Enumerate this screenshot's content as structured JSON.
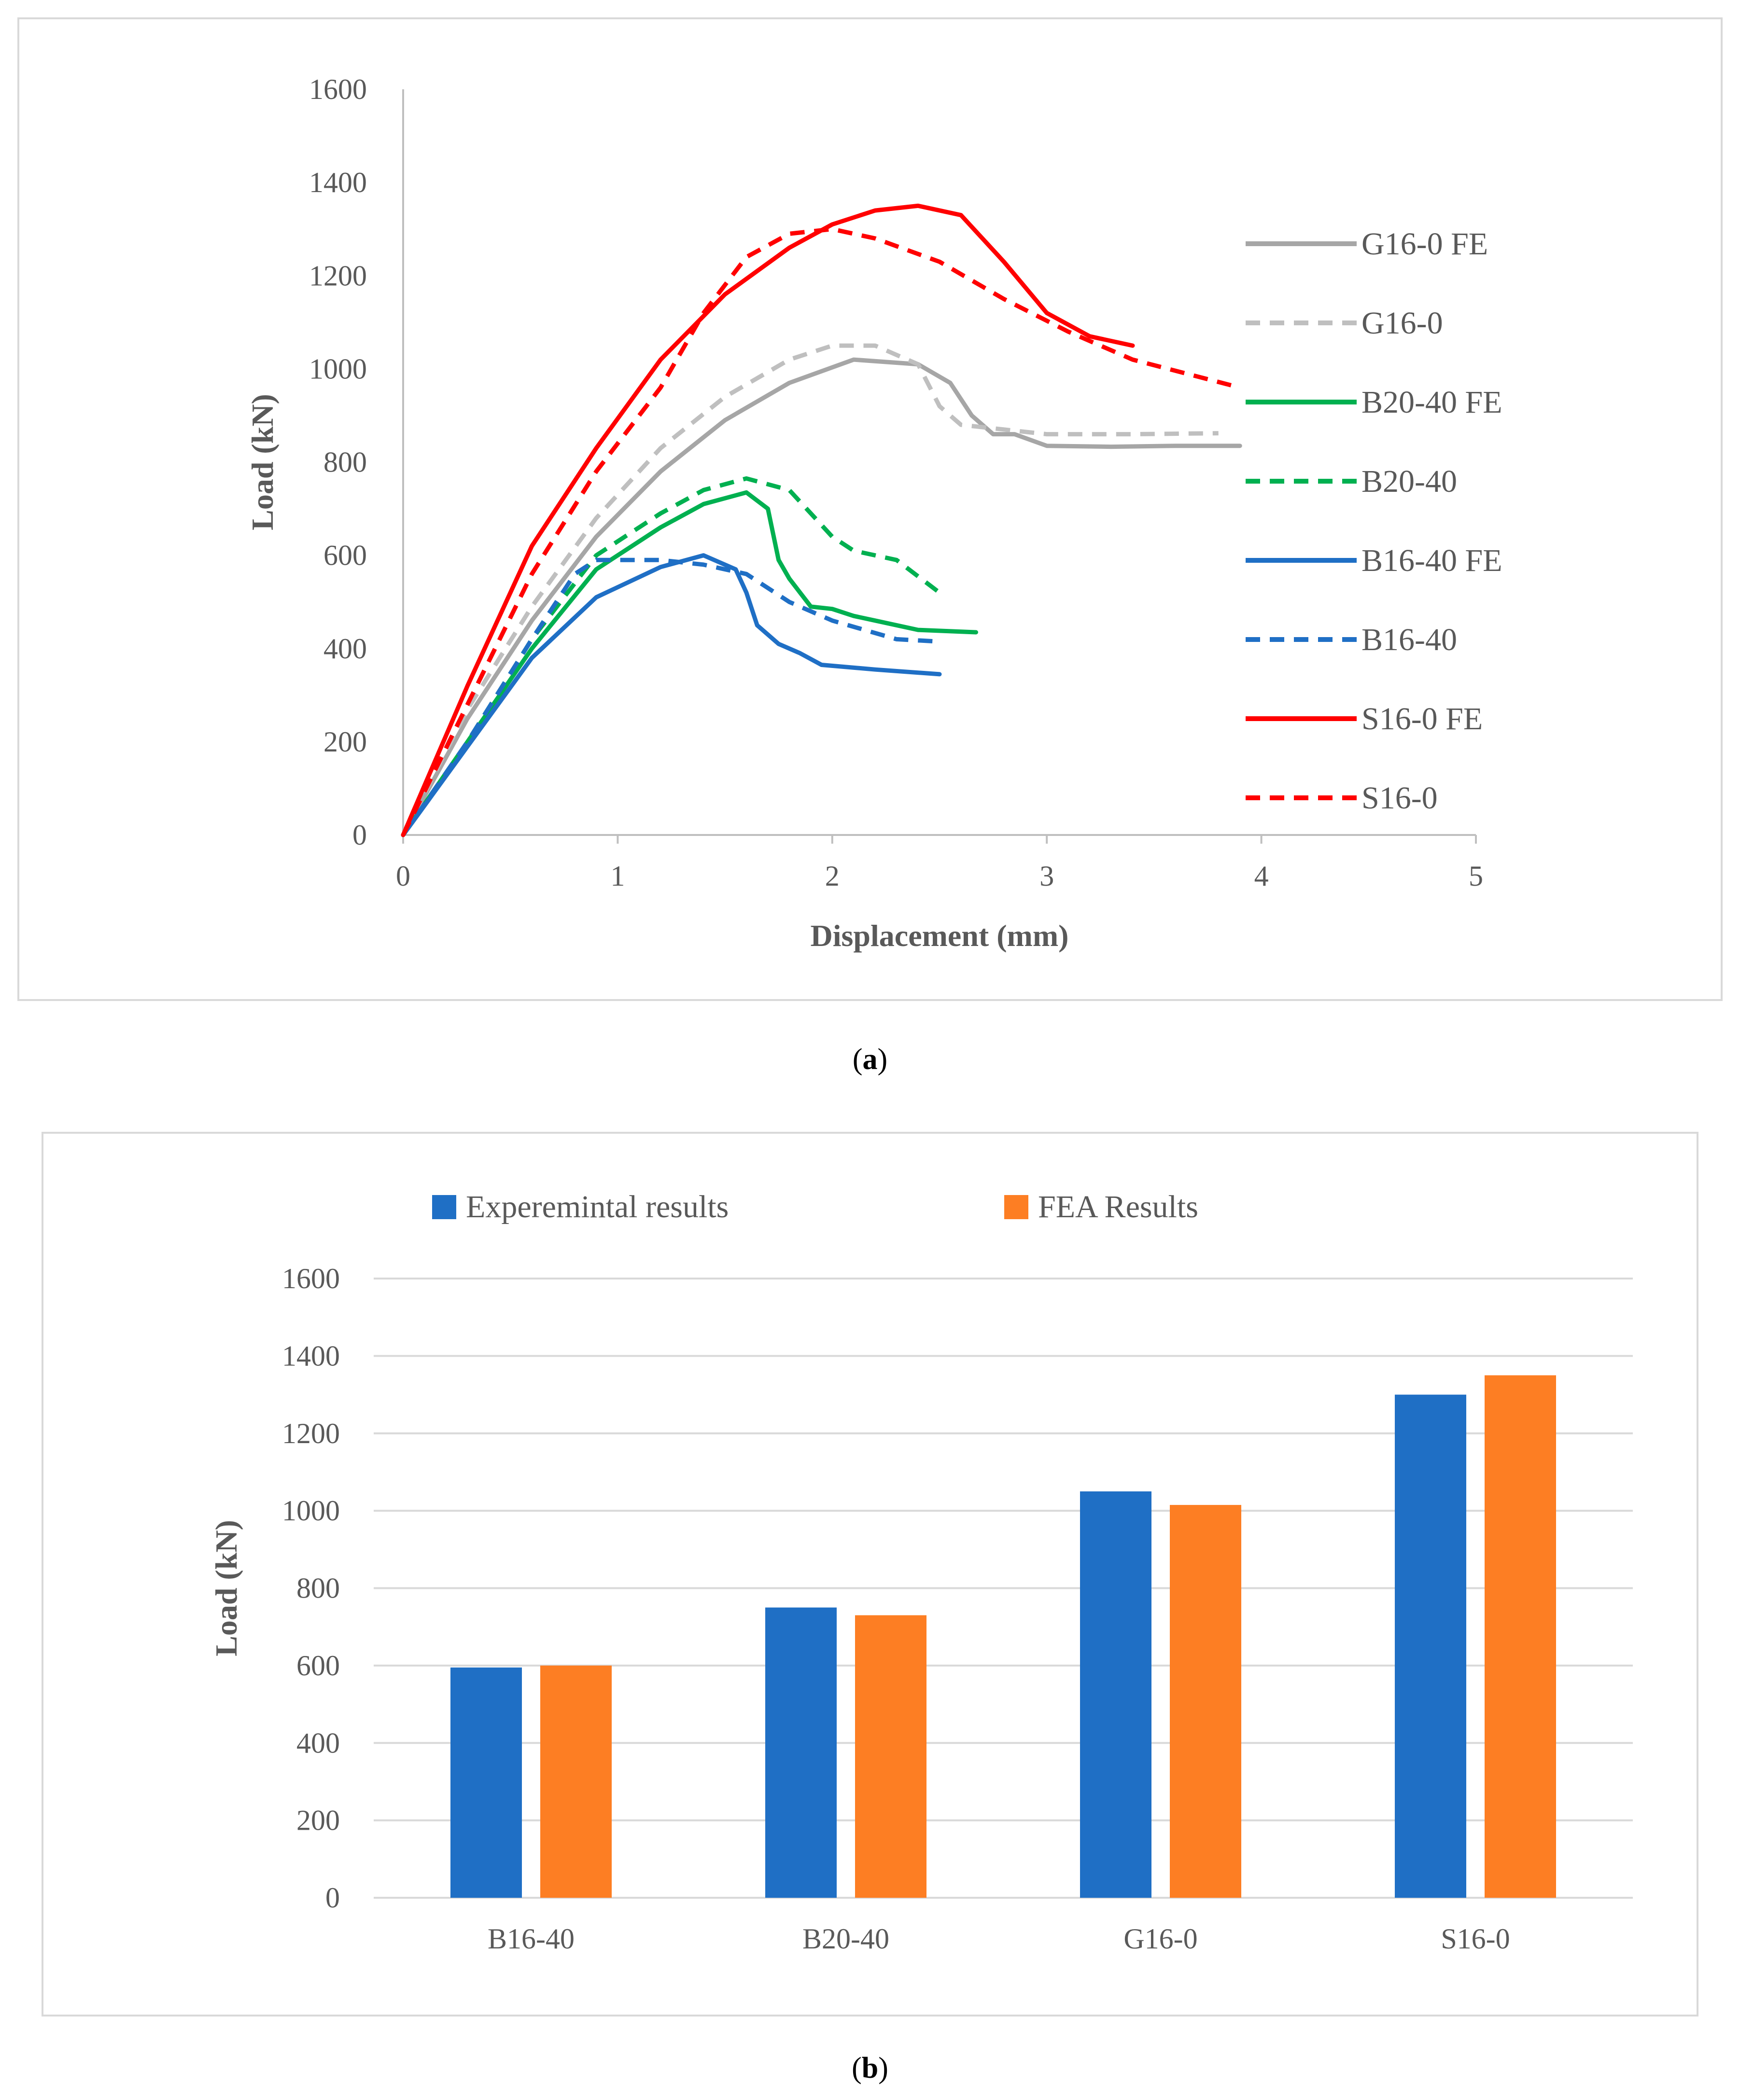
{
  "chart_data": [
    {
      "type": "line",
      "panel_label": "a",
      "xlabel": "Displacement (mm)",
      "ylabel": "Load (kN)",
      "xlim": [
        0,
        5
      ],
      "ylim": [
        0,
        1600
      ],
      "xticks": [
        "0",
        "1",
        "2",
        "3",
        "4",
        "5"
      ],
      "yticks": [
        "0",
        "200",
        "400",
        "600",
        "800",
        "1000",
        "1200",
        "1400",
        "1600"
      ],
      "grid": false,
      "legend_position": "right",
      "series": [
        {
          "name": "G16-0 FE",
          "color": "#a6a6a6",
          "dash": "solid",
          "x": [
            0,
            0.3,
            0.6,
            0.9,
            1.2,
            1.5,
            1.8,
            2.1,
            2.4,
            2.55,
            2.65,
            2.75,
            2.85,
            3.0,
            3.3,
            3.6,
            3.9
          ],
          "y": [
            0,
            250,
            460,
            640,
            780,
            890,
            970,
            1020,
            1010,
            970,
            900,
            860,
            860,
            835,
            833,
            835,
            835
          ]
        },
        {
          "name": "G16-0",
          "color": "#bfbfbf",
          "dash": "dashed",
          "x": [
            0,
            0.3,
            0.6,
            0.9,
            1.2,
            1.5,
            1.8,
            2.0,
            2.2,
            2.4,
            2.5,
            2.6,
            2.8,
            3.0,
            3.4,
            3.8
          ],
          "y": [
            0,
            270,
            490,
            680,
            830,
            940,
            1020,
            1050,
            1050,
            1010,
            920,
            880,
            870,
            860,
            860,
            862
          ]
        },
        {
          "name": "B20-40 FE",
          "color": "#00b050",
          "dash": "solid",
          "x": [
            0,
            0.3,
            0.6,
            0.9,
            1.2,
            1.4,
            1.6,
            1.7,
            1.75,
            1.8,
            1.9,
            2.0,
            2.1,
            2.2,
            2.4,
            2.67
          ],
          "y": [
            0,
            200,
            400,
            570,
            660,
            710,
            735,
            700,
            590,
            550,
            490,
            485,
            470,
            460,
            440,
            435
          ]
        },
        {
          "name": "B20-40",
          "color": "#00b050",
          "dash": "dashed",
          "x": [
            0,
            0.3,
            0.6,
            0.9,
            1.2,
            1.4,
            1.6,
            1.8,
            1.9,
            2.0,
            2.1,
            2.3,
            2.5
          ],
          "y": [
            0,
            200,
            420,
            600,
            690,
            740,
            765,
            740,
            690,
            640,
            610,
            590,
            520
          ]
        },
        {
          "name": "B16-40 FE",
          "color": "#1f6fc5",
          "dash": "solid",
          "x": [
            0,
            0.3,
            0.6,
            0.9,
            1.2,
            1.4,
            1.55,
            1.6,
            1.65,
            1.75,
            1.85,
            1.95,
            2.2,
            2.5
          ],
          "y": [
            0,
            190,
            380,
            510,
            575,
            600,
            570,
            520,
            450,
            410,
            390,
            365,
            355,
            345
          ]
        },
        {
          "name": "B16-40",
          "color": "#1f6fc5",
          "dash": "dashed",
          "x": [
            0,
            0.3,
            0.6,
            0.8,
            0.9,
            1.2,
            1.4,
            1.6,
            1.8,
            2.0,
            2.3,
            2.5
          ],
          "y": [
            0,
            200,
            420,
            560,
            590,
            590,
            580,
            560,
            500,
            460,
            420,
            415
          ]
        },
        {
          "name": "S16-0 FE",
          "color": "#ff0000",
          "dash": "solid",
          "x": [
            0,
            0.3,
            0.6,
            0.9,
            1.2,
            1.5,
            1.8,
            2.0,
            2.2,
            2.4,
            2.6,
            2.8,
            3.0,
            3.2,
            3.4
          ],
          "y": [
            0,
            320,
            620,
            830,
            1020,
            1160,
            1260,
            1310,
            1340,
            1350,
            1330,
            1230,
            1120,
            1070,
            1050
          ]
        },
        {
          "name": "S16-0",
          "color": "#ff0000",
          "dash": "dashed",
          "x": [
            0,
            0.3,
            0.6,
            0.9,
            1.2,
            1.4,
            1.6,
            1.8,
            2.0,
            2.2,
            2.5,
            2.8,
            3.1,
            3.4,
            3.9
          ],
          "y": [
            0,
            280,
            560,
            780,
            960,
            1120,
            1240,
            1290,
            1300,
            1280,
            1230,
            1150,
            1080,
            1020,
            960
          ]
        }
      ]
    },
    {
      "type": "bar",
      "panel_label": "b",
      "ylabel": "Load (kN)",
      "ylim": [
        0,
        1600
      ],
      "yticks": [
        "0",
        "200",
        "400",
        "600",
        "800",
        "1000",
        "1200",
        "1400",
        "1600"
      ],
      "grid": true,
      "legend_position": "top",
      "categories": [
        "B16-40",
        "B20-40",
        "G16-0",
        "S16-0"
      ],
      "series": [
        {
          "name": "Experemintal results",
          "color": "#1f6fc5",
          "values": [
            595,
            750,
            1050,
            1300
          ]
        },
        {
          "name": "FEA Results",
          "color": "#fd7e23",
          "values": [
            600,
            730,
            1015,
            1350
          ]
        }
      ]
    }
  ]
}
